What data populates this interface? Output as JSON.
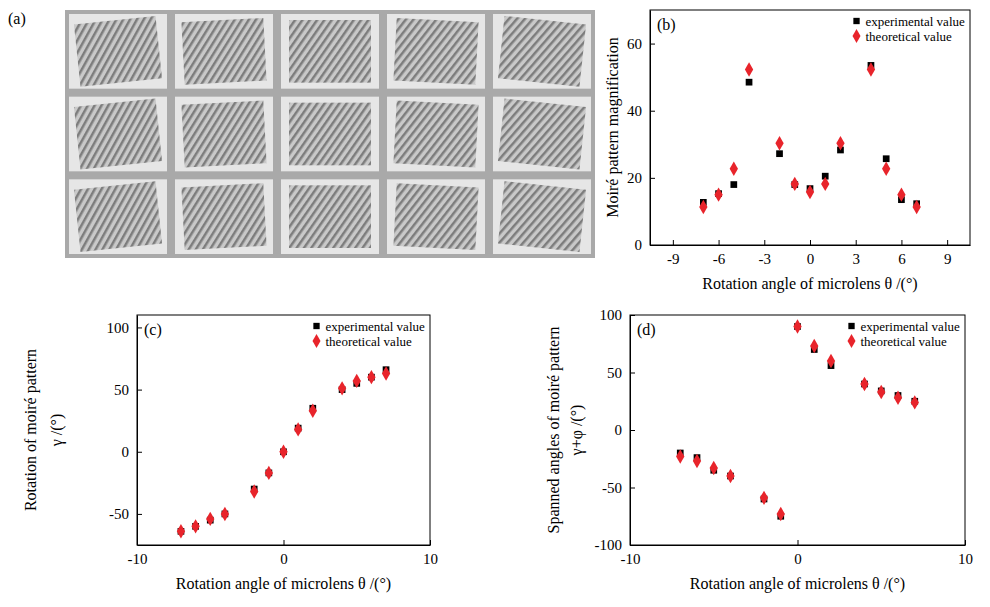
{
  "chart_data": [
    {
      "type": "scatter",
      "panel": "(b)",
      "xlabel": "Rotation angle of microlens θ /(°)",
      "ylabel": [
        "Moiré pattern magnification"
      ],
      "x": [
        -7,
        -6,
        -5,
        -4,
        -2,
        -1,
        0,
        1,
        2,
        4,
        5,
        6,
        7
      ],
      "xlim": [
        -10.5,
        10.5
      ],
      "xticks": [
        -9,
        -6,
        -3,
        0,
        3,
        6,
        9
      ],
      "ylim": [
        0,
        70
      ],
      "yticks": [
        0,
        20,
        40,
        60
      ],
      "legend": "upper right",
      "series": [
        {
          "name": "experimental value",
          "color": "#000000",
          "marker": "square",
          "values": [
            12.7,
            15.3,
            18,
            48.5,
            27.2,
            18,
            16.8,
            20.5,
            28.3,
            53.5,
            25.7,
            13.5,
            12.3
          ]
        },
        {
          "name": "theoretical value",
          "color": "#e8242b",
          "marker": "diamond",
          "values": [
            11.3,
            15,
            22.7,
            52.3,
            30.3,
            18.2,
            15.8,
            18.2,
            30.3,
            52.3,
            22.7,
            15,
            11.3
          ]
        }
      ]
    },
    {
      "type": "scatter",
      "panel": "(c)",
      "xlabel": "Rotation angle of microlens θ /(°)",
      "ylabel": [
        "Rotation of moiré pattern",
        "γ /(°)"
      ],
      "x": [
        -7,
        -6,
        -5,
        -4,
        -2,
        -1,
        0,
        1,
        2,
        4,
        5,
        6,
        7
      ],
      "xlim": [
        -10,
        10
      ],
      "xticks": [
        -10,
        0,
        10
      ],
      "ylim": [
        -75,
        110
      ],
      "yticks": [
        -50,
        0,
        50,
        100
      ],
      "legend": "upper right",
      "series": [
        {
          "name": "experimental value",
          "color": "#000000",
          "marker": "square",
          "values": [
            -64,
            -60,
            -55,
            -50,
            -30,
            -17,
            0,
            19,
            35,
            50,
            55,
            60,
            66
          ]
        },
        {
          "name": "theoretical value",
          "color": "#e8242b",
          "marker": "diamond",
          "values": [
            -64,
            -60,
            -54,
            -50,
            -32,
            -17,
            0,
            18,
            33,
            51,
            57,
            60,
            63
          ]
        }
      ]
    },
    {
      "type": "scatter",
      "panel": "(d)",
      "xlabel": "Rotation angle of microlens θ /(°)",
      "ylabel": [
        "Spanned angles of moiré pattern",
        "γ+φ /(°)"
      ],
      "x": [
        -7,
        -6,
        -5,
        -4,
        -2,
        -1,
        0,
        1,
        2,
        4,
        5,
        6,
        7
      ],
      "xlim": [
        -10,
        10
      ],
      "xticks": [
        -10,
        0,
        10
      ],
      "ylim": [
        -100,
        100
      ],
      "yticks": [
        -100,
        -50,
        0,
        50,
        100
      ],
      "legend": "upper right",
      "series": [
        {
          "name": "experimental value",
          "color": "#000000",
          "marker": "square",
          "values": [
            -20,
            -24,
            -35,
            -40,
            -60,
            -75,
            90,
            70,
            56,
            40,
            34,
            30,
            25
          ]
        },
        {
          "name": "theoretical value",
          "color": "#e8242b",
          "marker": "diamond",
          "values": [
            -23,
            -27,
            -33,
            -40,
            -59,
            -73,
            90,
            73,
            60,
            40,
            33,
            28,
            24
          ]
        }
      ]
    }
  ],
  "image": {
    "label": "(a)"
  }
}
